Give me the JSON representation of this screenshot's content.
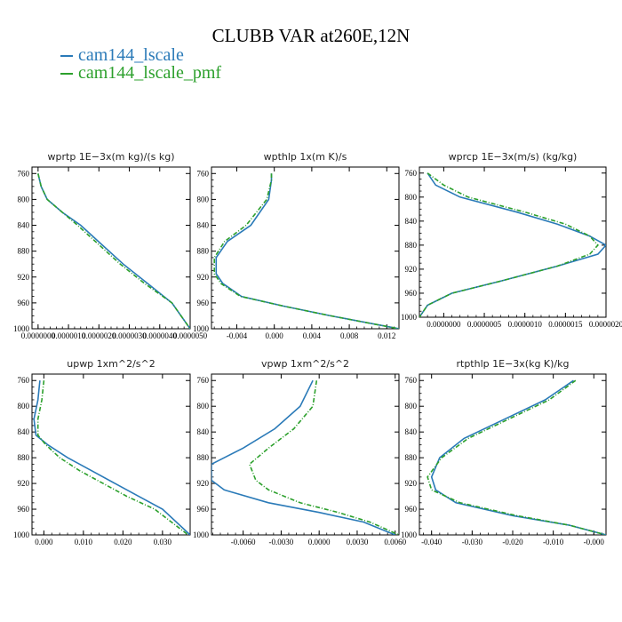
{
  "figure": {
    "title": "CLUBB VAR at260E,12N",
    "legend": [
      {
        "label": "cam144_lscale",
        "color": "#2a7ab8"
      },
      {
        "label": "cam144_lscale_pmf",
        "color": "#2ca02c"
      }
    ]
  },
  "chart_data": [
    {
      "type": "line",
      "title": "wprtp  1E−3x(m kg)/(s kg)",
      "xlim": [
        -2e-07,
        5e-06
      ],
      "ylim": [
        1000,
        750
      ],
      "x_ticks": [
        0.0,
        1e-06,
        2e-06,
        3e-06,
        4e-06,
        5e-06
      ],
      "x_tick_labels": [
        "0.0000000",
        "0.0000010",
        "0.0000020",
        "0.0000030",
        "0.0000040",
        "0.0000050"
      ],
      "y_ticks": [
        760,
        800,
        840,
        880,
        920,
        960,
        1000
      ],
      "series": [
        {
          "name": "cam144_lscale",
          "color": "#2a7ab8",
          "dashed": false,
          "x": [
            0.0,
            1e-07,
            3e-07,
            8e-07,
            1.4e-06,
            2.1e-06,
            2.8e-06,
            3.6e-06,
            4.4e-06,
            5e-06
          ],
          "y": [
            760,
            780,
            800,
            820,
            840,
            870,
            900,
            930,
            960,
            1000
          ]
        },
        {
          "name": "cam144_lscale_pmf",
          "color": "#2ca02c",
          "dashed": true,
          "x": [
            0.0,
            1e-07,
            3e-07,
            8e-07,
            1.3e-06,
            2e-06,
            2.7e-06,
            3.5e-06,
            4.4e-06,
            5e-06
          ],
          "y": [
            760,
            780,
            800,
            820,
            840,
            870,
            900,
            930,
            960,
            1000
          ]
        }
      ]
    },
    {
      "type": "line",
      "title": "wpthlp  1x(m K)/s",
      "xlim": [
        -0.0067,
        0.0133
      ],
      "ylim": [
        1000,
        750
      ],
      "x_ticks": [
        -0.004,
        0.0,
        0.004,
        0.008,
        0.012
      ],
      "x_tick_labels": [
        "-0.004",
        "0.000",
        "0.004",
        "0.008",
        "0.012"
      ],
      "y_ticks": [
        760,
        800,
        840,
        880,
        920,
        960,
        1000
      ],
      "series": [
        {
          "name": "cam144_lscale",
          "color": "#2a7ab8",
          "dashed": false,
          "x": [
            -0.0003,
            -0.0003,
            -0.0006,
            -0.0025,
            -0.005,
            -0.0062,
            -0.0062,
            -0.0055,
            -0.0035,
            0.001,
            0.006,
            0.0133
          ],
          "y": [
            760,
            770,
            800,
            840,
            865,
            890,
            915,
            930,
            950,
            965,
            980,
            1000
          ]
        },
        {
          "name": "cam144_lscale_pmf",
          "color": "#2ca02c",
          "dashed": true,
          "x": [
            -0.0003,
            -0.0003,
            -0.0008,
            -0.003,
            -0.0053,
            -0.0064,
            -0.0064,
            -0.0057,
            -0.0036,
            0.001,
            0.006,
            0.0133
          ],
          "y": [
            760,
            770,
            800,
            840,
            865,
            890,
            915,
            930,
            950,
            965,
            980,
            1000
          ]
        }
      ]
    },
    {
      "type": "line",
      "title": "wprcp  1E−3x(m/s) (kg/kg)",
      "xlim": [
        -3e-07,
        2e-06
      ],
      "ylim": [
        1000,
        750
      ],
      "x_ticks": [
        0.0,
        5e-07,
        1e-06,
        1.5e-06,
        2e-06
      ],
      "x_tick_labels": [
        "0.0000000",
        "0.0000005",
        "0.0000010",
        "0.0000015",
        "0.0000020"
      ],
      "y_ticks": [
        760,
        800,
        840,
        880,
        920,
        960,
        1000
      ],
      "series": [
        {
          "name": "cam144_lscale",
          "color": "#2a7ab8",
          "dashed": false,
          "x": [
            -2e-07,
            -1e-07,
            2e-07,
            9e-07,
            1.4e-06,
            1.8e-06,
            2e-06,
            1.9e-06,
            1.4e-06,
            7e-07,
            1e-07,
            -2e-07,
            -3e-07
          ],
          "y": [
            760,
            780,
            800,
            825,
            845,
            865,
            880,
            895,
            915,
            940,
            960,
            980,
            1000
          ]
        },
        {
          "name": "cam144_lscale_pmf",
          "color": "#2ca02c",
          "dashed": true,
          "x": [
            -2e-07,
            0.0,
            3e-07,
            1e-06,
            1.5e-06,
            1.8e-06,
            1.9e-06,
            1.8e-06,
            1.4e-06,
            7e-07,
            1e-07,
            -2e-07,
            -3e-07
          ],
          "y": [
            760,
            780,
            800,
            825,
            845,
            865,
            880,
            895,
            915,
            940,
            960,
            980,
            1000
          ]
        }
      ]
    },
    {
      "type": "line",
      "title": "upwp  1xm^2/s^2",
      "xlim": [
        -0.003,
        0.037
      ],
      "ylim": [
        1000,
        750
      ],
      "x_ticks": [
        0.0,
        0.01,
        0.02,
        0.03
      ],
      "x_tick_labels": [
        "0.000",
        "0.010",
        "0.020",
        "0.030"
      ],
      "y_ticks": [
        760,
        800,
        840,
        880,
        920,
        960,
        1000
      ],
      "series": [
        {
          "name": "cam144_lscale",
          "color": "#2a7ab8",
          "dashed": false,
          "x": [
            -0.001,
            -0.0015,
            -0.0025,
            -0.002,
            0.001,
            0.006,
            0.012,
            0.018,
            0.024,
            0.03,
            0.037
          ],
          "y": [
            760,
            790,
            820,
            845,
            860,
            880,
            900,
            920,
            940,
            960,
            1000
          ]
        },
        {
          "name": "cam144_lscale_pmf",
          "color": "#2ca02c",
          "dashed": true,
          "x": [
            0.0,
            -0.0005,
            -0.0015,
            -0.0015,
            0.0005,
            0.004,
            0.009,
            0.015,
            0.021,
            0.028,
            0.0365
          ],
          "y": [
            760,
            790,
            820,
            845,
            860,
            880,
            900,
            920,
            940,
            960,
            1000
          ]
        }
      ]
    },
    {
      "type": "line",
      "title": "vpwp  1xm^2/s^2",
      "xlim": [
        -0.0085,
        0.0063
      ],
      "ylim": [
        1000,
        750
      ],
      "x_ticks": [
        -0.006,
        -0.003,
        0.0,
        0.003,
        0.006
      ],
      "x_tick_labels": [
        "-0.0060",
        "-0.0030",
        "0.0000",
        "0.0030",
        "0.0060"
      ],
      "y_ticks": [
        760,
        800,
        840,
        880,
        920,
        960,
        1000
      ],
      "series": [
        {
          "name": "cam144_lscale",
          "color": "#2a7ab8",
          "dashed": false,
          "x": [
            -0.0005,
            -0.0015,
            -0.0035,
            -0.006,
            -0.0085,
            -0.0085,
            -0.0075,
            -0.004,
            0.0,
            0.0035,
            0.006
          ],
          "y": [
            760,
            800,
            835,
            865,
            890,
            915,
            930,
            950,
            965,
            980,
            1000
          ]
        },
        {
          "name": "cam144_lscale_pmf",
          "color": "#2ca02c",
          "dashed": true,
          "x": [
            -0.0002,
            -0.0005,
            -0.002,
            -0.004,
            -0.0055,
            -0.005,
            -0.004,
            -0.0015,
            0.0015,
            0.004,
            0.0063
          ],
          "y": [
            760,
            800,
            835,
            865,
            890,
            915,
            930,
            950,
            965,
            980,
            1000
          ]
        }
      ]
    },
    {
      "type": "line",
      "title": "rtpthlp  1E−3x(kg K)/kg",
      "xlim": [
        -0.043,
        0.003
      ],
      "ylim": [
        1000,
        750
      ],
      "x_ticks": [
        -0.04,
        -0.03,
        -0.02,
        -0.01,
        -0.0
      ],
      "x_tick_labels": [
        "-0.040",
        "-0.030",
        "-0.020",
        "-0.010",
        "-0.000"
      ],
      "y_ticks": [
        760,
        800,
        840,
        880,
        920,
        960,
        1000
      ],
      "series": [
        {
          "name": "cam144_lscale",
          "color": "#2a7ab8",
          "dashed": false,
          "x": [
            -0.005,
            -0.012,
            -0.022,
            -0.032,
            -0.038,
            -0.04,
            -0.039,
            -0.034,
            -0.02,
            -0.006,
            0.003
          ],
          "y": [
            760,
            790,
            820,
            850,
            880,
            910,
            930,
            950,
            970,
            985,
            1000
          ]
        },
        {
          "name": "cam144_lscale_pmf",
          "color": "#2ca02c",
          "dashed": true,
          "x": [
            -0.0045,
            -0.011,
            -0.021,
            -0.031,
            -0.0375,
            -0.041,
            -0.04,
            -0.033,
            -0.019,
            -0.006,
            0.003
          ],
          "y": [
            760,
            790,
            820,
            850,
            880,
            910,
            930,
            950,
            970,
            985,
            1000
          ]
        }
      ]
    }
  ]
}
